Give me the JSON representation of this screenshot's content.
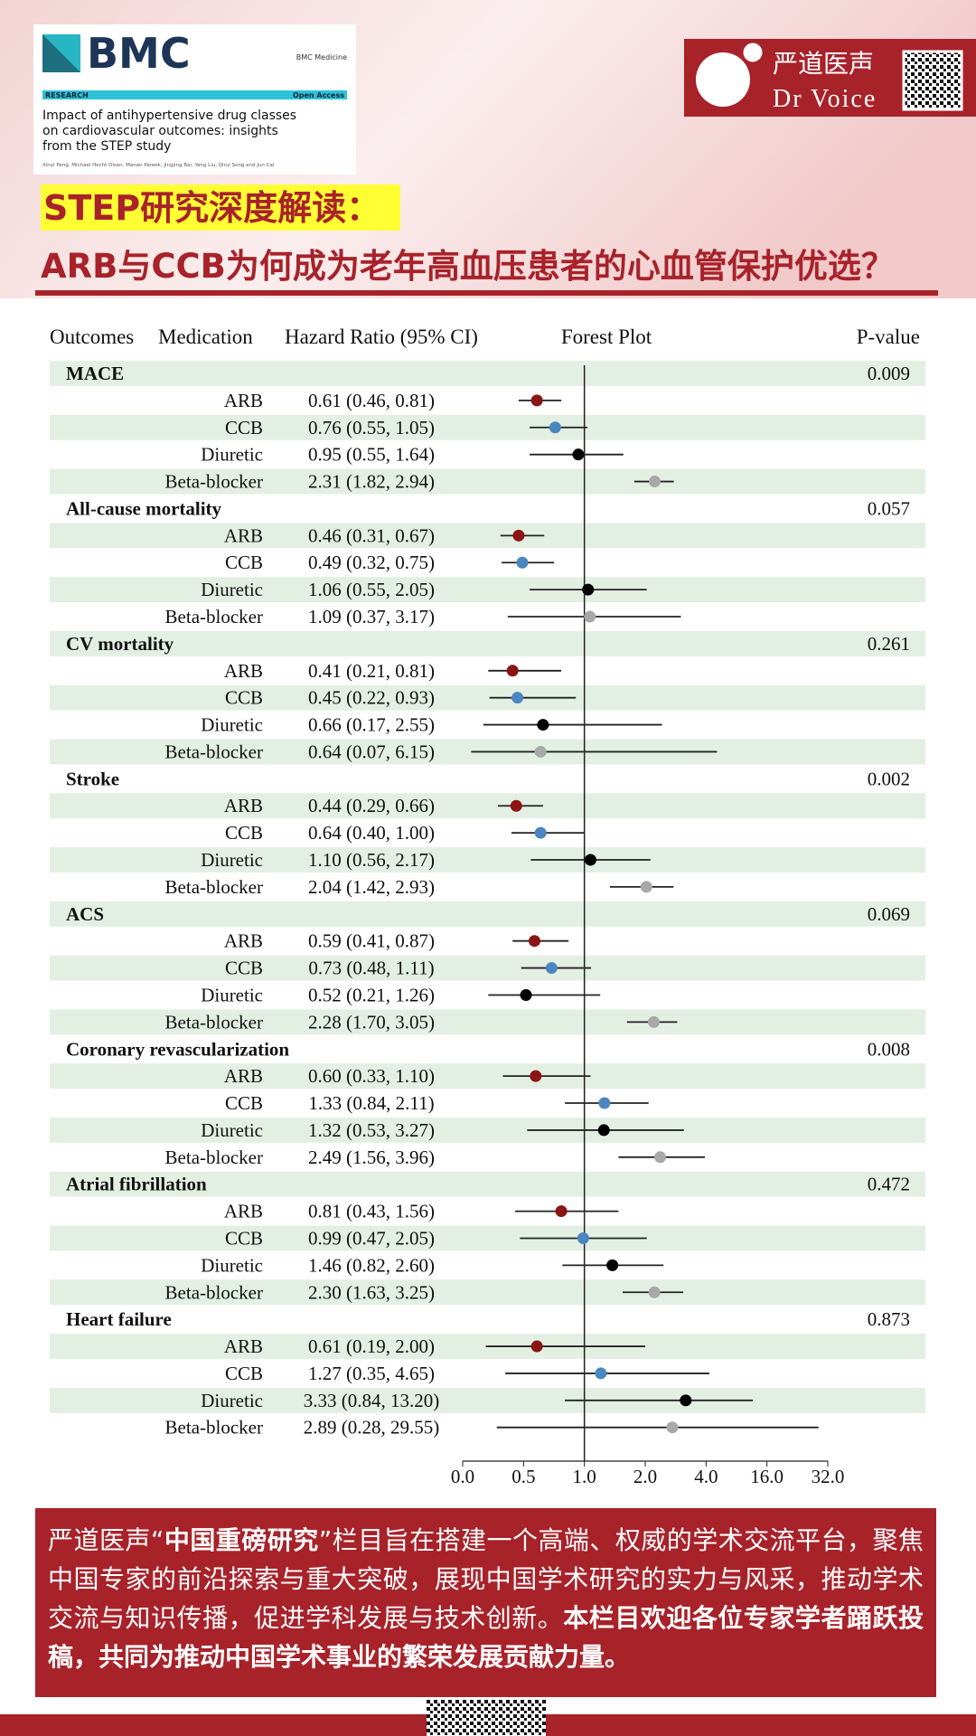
{
  "header": {
    "journal_logo": "BMC",
    "journal": "BMC Medicine",
    "section": "RESEARCH",
    "access": "Open Access",
    "paper_title_lines": [
      "Impact of antihypertensive drug classes",
      "on cardiovascular outcomes: insights",
      "from the STEP study"
    ],
    "authors": "Xinyi Peng, Michael Hecht Olsen, Manan Pareek, Jingjing Bai, Yang Liu, Qirui Song and Jun Cai",
    "brand_cn": "严道医声",
    "brand_en": "Dr Voice",
    "headline_1": "STEP研究深度解读：",
    "headline_2": "ARB与CCB为何成为老年高血压患者的心血管保护优选？"
  },
  "chart_data": {
    "type": "forest",
    "headers": [
      "Outcomes",
      "Medication",
      "Hazard Ratio (95% CI)",
      "Forest Plot",
      "P-value"
    ],
    "medications": [
      "ARB",
      "CCB",
      "Diuretic",
      "Beta-blocker"
    ],
    "colors": [
      "#8b1414",
      "#4a86c0",
      "#000000",
      "#a8a8a8"
    ],
    "xlim": [
      0,
      32
    ],
    "xticks": [
      {
        "value": 0,
        "label": "0.0"
      },
      {
        "value": 0.5,
        "label": "0.5"
      },
      {
        "value": 1,
        "label": "1.0"
      },
      {
        "value": 2,
        "label": "2.0"
      },
      {
        "value": 4,
        "label": "4.0"
      },
      {
        "value": 16,
        "label": "16.0"
      },
      {
        "value": 32,
        "label": "32.0"
      }
    ],
    "reference": 1,
    "outcomes": [
      {
        "name": "MACE",
        "p_value": 0.009,
        "hr": [
          0.61,
          0.76,
          0.95,
          2.31
        ],
        "lower": [
          0.46,
          0.55,
          0.55,
          1.82
        ],
        "upper": [
          0.81,
          1.05,
          1.64,
          2.94
        ],
        "value_labels": [
          "0.61 (0.46, 0.81)",
          "0.76 (0.55, 1.05)",
          "0.95 (0.55, 1.64)",
          "2.31 (1.82, 2.94)"
        ]
      },
      {
        "name": "All-cause mortality",
        "p_value": 0.057,
        "hr": [
          0.46,
          0.49,
          1.06,
          1.09
        ],
        "lower": [
          0.31,
          0.32,
          0.55,
          0.37
        ],
        "upper": [
          0.67,
          0.75,
          2.05,
          3.17
        ],
        "value_labels": [
          "0.46 (0.31, 0.67)",
          "0.49 (0.32, 0.75)",
          "1.06 (0.55, 2.05)",
          "1.09 (0.37, 3.17)"
        ]
      },
      {
        "name": "CV mortality",
        "p_value": 0.261,
        "hr": [
          0.41,
          0.45,
          0.66,
          0.64
        ],
        "lower": [
          0.21,
          0.22,
          0.17,
          0.07
        ],
        "upper": [
          0.81,
          0.93,
          2.55,
          6.15
        ],
        "value_labels": [
          "0.41 (0.21, 0.81)",
          "0.45 (0.22, 0.93)",
          "0.66 (0.17, 2.55)",
          "0.64 (0.07, 6.15)"
        ]
      },
      {
        "name": "Stroke",
        "p_value": 0.002,
        "hr": [
          0.44,
          0.64,
          1.1,
          2.04
        ],
        "lower": [
          0.29,
          0.4,
          0.56,
          1.42
        ],
        "upper": [
          0.66,
          1.0,
          2.17,
          2.93
        ],
        "value_labels": [
          "0.44 (0.29, 0.66)",
          "0.64 (0.40, 1.00)",
          "1.10 (0.56, 2.17)",
          "2.04 (1.42, 2.93)"
        ]
      },
      {
        "name": "ACS",
        "p_value": 0.069,
        "hr": [
          0.59,
          0.73,
          0.52,
          2.28
        ],
        "lower": [
          0.41,
          0.48,
          0.21,
          1.7
        ],
        "upper": [
          0.87,
          1.11,
          1.26,
          3.05
        ],
        "value_labels": [
          "0.59 (0.41, 0.87)",
          "0.73 (0.48, 1.11)",
          "0.52 (0.21, 1.26)",
          "2.28 (1.70, 3.05)"
        ]
      },
      {
        "name": "Coronary revascularization",
        "p_value": 0.008,
        "hr": [
          0.6,
          1.33,
          1.32,
          2.49
        ],
        "lower": [
          0.33,
          0.84,
          0.53,
          1.56
        ],
        "upper": [
          1.1,
          2.11,
          3.27,
          3.96
        ],
        "value_labels": [
          "0.60 (0.33, 1.10)",
          "1.33 (0.84, 2.11)",
          "1.32 (0.53, 3.27)",
          "2.49 (1.56, 3.96)"
        ]
      },
      {
        "name": "Atrial fibrillation",
        "p_value": 0.472,
        "hr": [
          0.81,
          0.99,
          1.46,
          2.3
        ],
        "lower": [
          0.43,
          0.47,
          0.82,
          1.63
        ],
        "upper": [
          1.56,
          2.05,
          2.6,
          3.25
        ],
        "value_labels": [
          "0.81 (0.43, 1.56)",
          "0.99 (0.47, 2.05)",
          "1.46 (0.82, 2.60)",
          "2.30 (1.63, 3.25)"
        ]
      },
      {
        "name": "Heart failure",
        "p_value": 0.873,
        "hr": [
          0.61,
          1.27,
          3.33,
          2.89
        ],
        "lower": [
          0.19,
          0.35,
          0.84,
          0.28
        ],
        "upper": [
          2.0,
          4.65,
          13.2,
          29.55
        ],
        "value_labels": [
          "0.61 (0.19, 2.00)",
          "1.27 (0.35, 4.65)",
          "3.33 (0.84, 13.20)",
          "2.89 (0.28, 29.55)"
        ]
      }
    ]
  },
  "footer": {
    "segments": [
      "严道医声“",
      "中国重磅研究",
      "”栏目旨在搭建一个高端、权威的学术交流平台，聚焦中国专家的前沿探索与重大突破，展现中国学术研究的实力与风采，推动学术交流与知识传播，促进学科发展与技术创新。",
      "本栏目欢迎各位专家学者踊跃投稿，共同为推动中国学术事业的繁荣发展贡献力量。"
    ]
  }
}
